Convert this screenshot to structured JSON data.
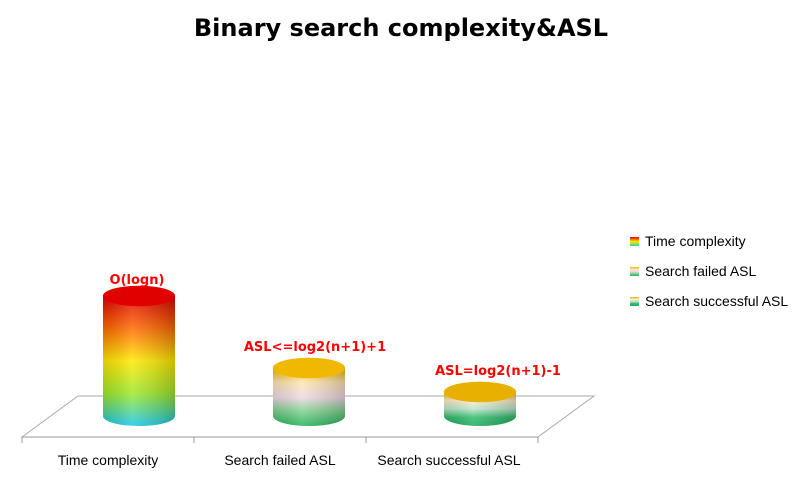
{
  "chart_data": {
    "type": "bar",
    "title": "Binary search  complexity&ASL",
    "categories": [
      "Time  complexity",
      "Search failed ASL",
      "Search successful ASL"
    ],
    "values": [
      100,
      40,
      20
    ],
    "data_labels": [
      "O(logn)",
      "ASL<=log2(n+1)+1",
      "ASL=log2(n+1)-1"
    ],
    "legend": [
      "Time  complexity",
      "Search failed ASL",
      "Search successful ASL"
    ],
    "legend_position": "right",
    "grid": false,
    "style": "3d-cylinder",
    "colors": {
      "time": [
        "#e00000",
        "#ff6a00",
        "#ffe800",
        "#9ee82a",
        "#18c8e8"
      ],
      "failed": [
        "#f0b800",
        "#ffe6b0",
        "#f2d8e6",
        "#7ed08e",
        "#23b25a"
      ],
      "successful": [
        "#e8b000",
        "#ffecc8",
        "#b8e6c8",
        "#2ebb6a",
        "#22a85a"
      ]
    }
  }
}
